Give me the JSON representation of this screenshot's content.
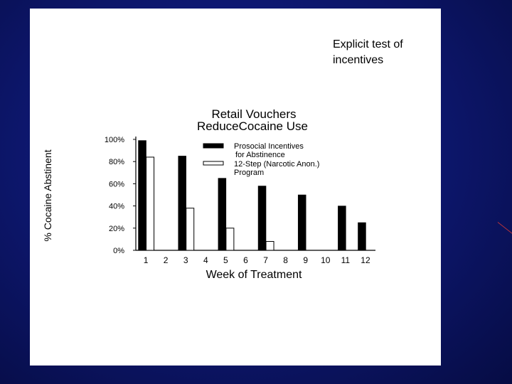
{
  "slide": {
    "callout_text": "Explicit test of incentives"
  },
  "colors": {
    "background": "#0e1872",
    "panel": "#ffffff",
    "accent_line": "#b8333a"
  },
  "chart_data": {
    "type": "bar",
    "title_line1": "Retail Vouchers",
    "title_line2": "ReduceCocaine Use",
    "xlabel": "Week of Treatment",
    "ylabel": "% Cocaine Abstinent",
    "categories": [
      "1",
      "2",
      "3",
      "4",
      "5",
      "6",
      "7",
      "8",
      "9",
      "10",
      "11",
      "12"
    ],
    "yticks": [
      "0%",
      "20%",
      "40%",
      "60%",
      "80%",
      "100%"
    ],
    "ylim": [
      0,
      100
    ],
    "grid": false,
    "legend_position": "top-right",
    "series": [
      {
        "name": "Prosocial Incentives for Abstinence",
        "legend_line1": "Prosocial Incentives",
        "legend_line2": "for Abstinence",
        "color": "#000000",
        "values": [
          99,
          null,
          85,
          null,
          65,
          null,
          58,
          null,
          50,
          null,
          40,
          25
        ]
      },
      {
        "name": "12-Step (Narcotic Anon.) Program",
        "legend_line1": "12-Step (Narcotic Anon.)",
        "legend_line2": "Program",
        "color": "#ffffff",
        "values": [
          84,
          null,
          38,
          null,
          20,
          null,
          8,
          null,
          null,
          null,
          null,
          null
        ]
      }
    ]
  }
}
